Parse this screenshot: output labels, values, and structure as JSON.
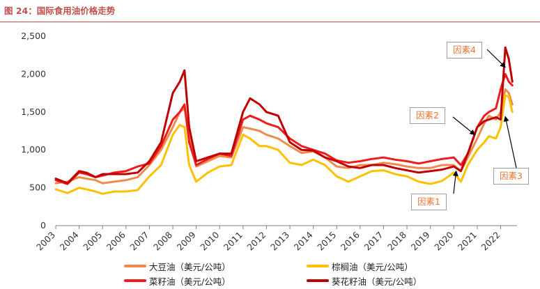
{
  "figure_title": "图 24：国际食用油价格走势",
  "colors": {
    "soybean_oil": "#f08a4b",
    "palm_oil": "#ffc000",
    "rapeseed_oil": "#ee1c1c",
    "sunflower_oil": "#c00000",
    "title": "#c0504d",
    "callout_text": "#e8752f"
  },
  "legend": [
    {
      "label": "大豆油（美元/公吨）",
      "color": "#f08a4b"
    },
    {
      "label": "棕榈油（美元/公吨）",
      "color": "#ffc000"
    },
    {
      "label": "菜籽油（美元/公吨）",
      "color": "#ee1c1c"
    },
    {
      "label": "葵花籽油（美元/公吨）",
      "color": "#c00000"
    }
  ],
  "annotations": [
    {
      "label": "因素1",
      "x": 2020.1
    },
    {
      "label": "因素2",
      "x": 2020.9
    },
    {
      "label": "因素3",
      "x": 2022.2
    },
    {
      "label": "因素4",
      "x": 2022.2
    }
  ],
  "chart_data": {
    "type": "line",
    "title": "图 24：国际食用油价格走势",
    "xlabel": "",
    "ylabel": "",
    "x_ticks": [
      "2003",
      "2004",
      "2005",
      "2006",
      "2007",
      "2008",
      "2009",
      "2010",
      "2011",
      "2012",
      "2013",
      "2014",
      "2015",
      "2016",
      "2017",
      "2018",
      "2019",
      "2020",
      "2021",
      "2022"
    ],
    "y_ticks": [
      "0",
      "500",
      "1,000",
      "1,500",
      "2,000",
      "2,500"
    ],
    "xlim": [
      2003,
      2022.7
    ],
    "ylim": [
      0,
      2500
    ],
    "grid": false,
    "legend_position": "bottom",
    "series": [
      {
        "name": "大豆油（美元/公吨）",
        "color": "#f08a4b",
        "x": [
          2003.0,
          2003.5,
          2004.0,
          2004.3,
          2004.7,
          2005.0,
          2005.5,
          2006.0,
          2006.5,
          2007.0,
          2007.5,
          2008.0,
          2008.3,
          2008.5,
          2008.7,
          2009.0,
          2009.5,
          2010.0,
          2010.5,
          2011.0,
          2011.3,
          2011.7,
          2012.0,
          2012.5,
          2013.0,
          2013.5,
          2014.0,
          2014.5,
          2015.0,
          2015.5,
          2016.0,
          2016.5,
          2017.0,
          2017.5,
          2018.0,
          2018.5,
          2019.0,
          2019.5,
          2020.0,
          2020.3,
          2020.6,
          2021.0,
          2021.3,
          2021.5,
          2021.8,
          2022.0,
          2022.2,
          2022.35,
          2022.5
        ],
        "y": [
          560,
          580,
          640,
          620,
          600,
          560,
          580,
          600,
          640,
          800,
          1000,
          1300,
          1500,
          1550,
          1200,
          780,
          850,
          920,
          900,
          1300,
          1280,
          1250,
          1200,
          1150,
          1050,
          960,
          980,
          900,
          780,
          760,
          800,
          800,
          830,
          810,
          780,
          760,
          760,
          800,
          800,
          720,
          900,
          1150,
          1350,
          1450,
          1400,
          1500,
          1800,
          1750,
          1600
        ]
      },
      {
        "name": "棕榈油（美元/公吨）",
        "color": "#ffc000",
        "x": [
          2003.0,
          2003.5,
          2004.0,
          2004.3,
          2004.7,
          2005.0,
          2005.5,
          2006.0,
          2006.5,
          2007.0,
          2007.5,
          2008.0,
          2008.3,
          2008.5,
          2008.7,
          2009.0,
          2009.5,
          2010.0,
          2010.5,
          2011.0,
          2011.3,
          2011.7,
          2012.0,
          2012.5,
          2013.0,
          2013.5,
          2014.0,
          2014.5,
          2015.0,
          2015.5,
          2016.0,
          2016.5,
          2017.0,
          2017.5,
          2018.0,
          2018.5,
          2019.0,
          2019.5,
          2020.0,
          2020.3,
          2020.6,
          2021.0,
          2021.3,
          2021.5,
          2021.8,
          2022.0,
          2022.2,
          2022.35,
          2022.5
        ],
        "y": [
          480,
          430,
          500,
          480,
          450,
          420,
          450,
          450,
          470,
          650,
          800,
          1200,
          1330,
          1300,
          800,
          580,
          700,
          780,
          800,
          1200,
          1150,
          1050,
          1050,
          1000,
          830,
          800,
          870,
          800,
          650,
          580,
          650,
          720,
          730,
          680,
          650,
          580,
          550,
          590,
          700,
          580,
          800,
          1000,
          1100,
          1180,
          1150,
          1300,
          1720,
          1700,
          1500
        ]
      },
      {
        "name": "菜籽油（美元/公吨）",
        "color": "#ee1c1c",
        "x": [
          2003.0,
          2003.5,
          2004.0,
          2004.3,
          2004.7,
          2005.0,
          2005.5,
          2006.0,
          2006.5,
          2007.0,
          2007.5,
          2008.0,
          2008.3,
          2008.5,
          2008.7,
          2009.0,
          2009.5,
          2010.0,
          2010.5,
          2011.0,
          2011.3,
          2011.7,
          2012.0,
          2012.5,
          2013.0,
          2013.5,
          2014.0,
          2014.5,
          2015.0,
          2015.5,
          2016.0,
          2016.5,
          2017.0,
          2017.5,
          2018.0,
          2018.5,
          2019.0,
          2019.5,
          2020.0,
          2020.3,
          2020.6,
          2021.0,
          2021.3,
          2021.5,
          2021.8,
          2022.0,
          2022.2,
          2022.35,
          2022.5
        ],
        "y": [
          600,
          550,
          700,
          680,
          640,
          660,
          700,
          720,
          780,
          820,
          1050,
          1400,
          1500,
          1600,
          1100,
          800,
          880,
          950,
          920,
          1400,
          1450,
          1400,
          1350,
          1300,
          1150,
          1050,
          1000,
          950,
          860,
          830,
          850,
          880,
          900,
          870,
          850,
          820,
          850,
          880,
          900,
          800,
          950,
          1300,
          1450,
          1500,
          1550,
          1800,
          2000,
          1900,
          1850
        ]
      },
      {
        "name": "葵花籽油（美元/公吨）",
        "color": "#c00000",
        "x": [
          2003.0,
          2003.5,
          2004.0,
          2004.3,
          2004.7,
          2005.0,
          2005.5,
          2006.0,
          2006.5,
          2007.0,
          2007.5,
          2008.0,
          2008.3,
          2008.5,
          2008.7,
          2009.0,
          2009.5,
          2010.0,
          2010.5,
          2011.0,
          2011.3,
          2011.7,
          2012.0,
          2012.5,
          2013.0,
          2013.5,
          2014.0,
          2014.5,
          2015.0,
          2015.5,
          2016.0,
          2016.5,
          2017.0,
          2017.5,
          2018.0,
          2018.5,
          2019.0,
          2019.5,
          2020.0,
          2020.3,
          2020.6,
          2021.0,
          2021.3,
          2021.5,
          2021.8,
          2022.0,
          2022.2,
          2022.35,
          2022.5
        ],
        "y": [
          620,
          560,
          720,
          700,
          640,
          680,
          680,
          680,
          700,
          850,
          1100,
          1750,
          1900,
          2050,
          1300,
          850,
          900,
          950,
          950,
          1500,
          1680,
          1600,
          1500,
          1450,
          1100,
          1000,
          990,
          900,
          850,
          780,
          760,
          800,
          800,
          760,
          730,
          700,
          720,
          740,
          780,
          720,
          950,
          1300,
          1380,
          1400,
          1430,
          1400,
          2350,
          2200,
          1900
        ]
      }
    ]
  }
}
